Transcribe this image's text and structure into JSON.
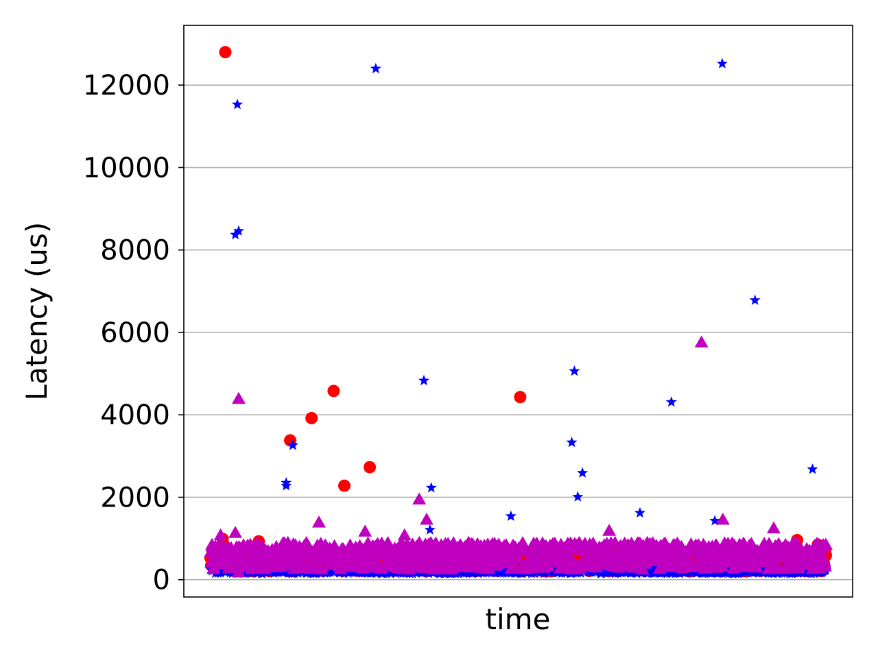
{
  "chart_data": {
    "type": "scatter",
    "title": "",
    "xlabel": "time",
    "ylabel": "Latency (us)",
    "ylim": [
      -420,
      13450
    ],
    "xlim": [
      0,
      1000
    ],
    "yticks": [
      0,
      2000,
      4000,
      6000,
      8000,
      10000,
      12000
    ],
    "ytick_labels": [
      "0",
      "2000",
      "4000",
      "6000",
      "8000",
      "10000",
      "12000"
    ],
    "grid": "horizontal",
    "legend": "none",
    "series": [
      {
        "marker": "circle",
        "color": "#ff0000",
        "baseline": {
          "x_start": 40,
          "x_end": 960,
          "y_low": 200,
          "y_high": 700
        },
        "outliers": [
          {
            "x": 62,
            "y": 12800
          },
          {
            "x": 159,
            "y": 3380
          },
          {
            "x": 191,
            "y": 3920
          },
          {
            "x": 224,
            "y": 4580
          },
          {
            "x": 240,
            "y": 2280
          },
          {
            "x": 278,
            "y": 2730
          },
          {
            "x": 503,
            "y": 4430
          },
          {
            "x": 917,
            "y": 960
          },
          {
            "x": 948,
            "y": 850
          },
          {
            "x": 58,
            "y": 990
          },
          {
            "x": 112,
            "y": 930
          }
        ]
      },
      {
        "marker": "star",
        "color": "#0000ff",
        "baseline": {
          "x_start": 40,
          "x_end": 960,
          "y_low": 150,
          "y_high": 260
        },
        "outliers": [
          {
            "x": 80,
            "y": 11530
          },
          {
            "x": 82,
            "y": 8460
          },
          {
            "x": 77,
            "y": 8370
          },
          {
            "x": 153,
            "y": 2350
          },
          {
            "x": 153,
            "y": 2280
          },
          {
            "x": 163,
            "y": 3260
          },
          {
            "x": 287,
            "y": 12400
          },
          {
            "x": 359,
            "y": 4830
          },
          {
            "x": 370,
            "y": 2230
          },
          {
            "x": 368,
            "y": 1210
          },
          {
            "x": 489,
            "y": 1540
          },
          {
            "x": 584,
            "y": 5060
          },
          {
            "x": 580,
            "y": 3330
          },
          {
            "x": 589,
            "y": 2010
          },
          {
            "x": 596,
            "y": 2590
          },
          {
            "x": 682,
            "y": 1620
          },
          {
            "x": 729,
            "y": 4310
          },
          {
            "x": 805,
            "y": 12520
          },
          {
            "x": 854,
            "y": 6780
          },
          {
            "x": 940,
            "y": 2680
          },
          {
            "x": 794,
            "y": 1430
          }
        ]
      },
      {
        "marker": "triangle",
        "color": "#bf00bf",
        "baseline": {
          "x_start": 40,
          "x_end": 960,
          "y_low": 250,
          "y_high": 900
        },
        "outliers": [
          {
            "x": 82,
            "y": 4390
          },
          {
            "x": 202,
            "y": 1390
          },
          {
            "x": 352,
            "y": 1950
          },
          {
            "x": 363,
            "y": 1460
          },
          {
            "x": 271,
            "y": 1170
          },
          {
            "x": 636,
            "y": 1190
          },
          {
            "x": 774,
            "y": 5760
          },
          {
            "x": 806,
            "y": 1460
          },
          {
            "x": 882,
            "y": 1250
          },
          {
            "x": 55,
            "y": 1080
          },
          {
            "x": 77,
            "y": 1140
          },
          {
            "x": 330,
            "y": 1080
          },
          {
            "x": 82,
            "y": 180
          }
        ]
      }
    ]
  }
}
